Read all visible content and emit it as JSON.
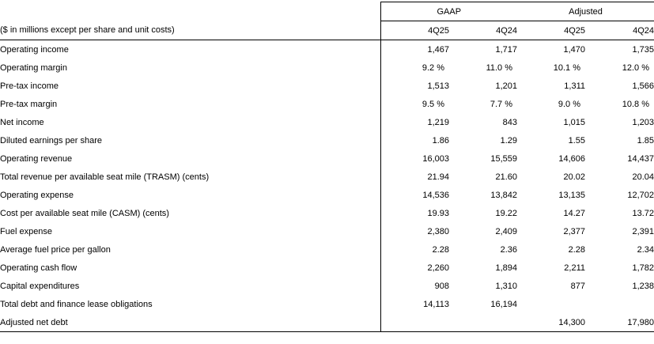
{
  "table": {
    "unit_note": "($ in millions except per share and unit costs)",
    "group_headers": [
      "GAAP",
      "Adjusted"
    ],
    "column_headers": [
      "4Q25",
      "4Q24",
      "4Q25",
      "4Q24"
    ],
    "rows": [
      {
        "label": "Operating income",
        "values": [
          "1,467",
          "1,717",
          "1,470",
          "1,735"
        ]
      },
      {
        "label": "Operating margin",
        "values": [
          "9.2 %",
          "11.0 %",
          "10.1 %",
          "12.0 %"
        ]
      },
      {
        "label": "Pre-tax income",
        "values": [
          "1,513",
          "1,201",
          "1,311",
          "1,566"
        ]
      },
      {
        "label": "Pre-tax margin",
        "values": [
          "9.5 %",
          "7.7 %",
          "9.0 %",
          "10.8 %"
        ]
      },
      {
        "label": "Net income",
        "values": [
          "1,219",
          "843",
          "1,015",
          "1,203"
        ]
      },
      {
        "label": "Diluted earnings per share",
        "values": [
          "1.86",
          "1.29",
          "1.55",
          "1.85"
        ]
      },
      {
        "label": "Operating revenue",
        "values": [
          "16,003",
          "15,559",
          "14,606",
          "14,437"
        ]
      },
      {
        "label": "Total revenue per available seat mile (TRASM) (cents)",
        "values": [
          "21.94",
          "21.60",
          "20.02",
          "20.04"
        ]
      },
      {
        "label": "Operating expense",
        "values": [
          "14,536",
          "13,842",
          "13,135",
          "12,702"
        ]
      },
      {
        "label": "Cost per available seat mile (CASM) (cents)",
        "values": [
          "19.93",
          "19.22",
          "14.27",
          "13.72"
        ]
      },
      {
        "label": "Fuel expense",
        "values": [
          "2,380",
          "2,409",
          "2,377",
          "2,391"
        ]
      },
      {
        "label": "Average fuel price per gallon",
        "values": [
          "2.28",
          "2.36",
          "2.28",
          "2.34"
        ]
      },
      {
        "label": "Operating cash flow",
        "values": [
          "2,260",
          "1,894",
          "2,211",
          "1,782"
        ]
      },
      {
        "label": "Capital expenditures",
        "values": [
          "908",
          "1,310",
          "877",
          "1,238"
        ]
      },
      {
        "label": "Total debt and finance lease obligations",
        "values": [
          "14,113",
          "16,194",
          "",
          ""
        ]
      },
      {
        "label": "Adjusted net debt",
        "values": [
          "",
          "",
          "14,300",
          "17,980"
        ]
      }
    ],
    "colors": {
      "text": "#000000",
      "border": "#000000",
      "background": "#ffffff"
    }
  }
}
